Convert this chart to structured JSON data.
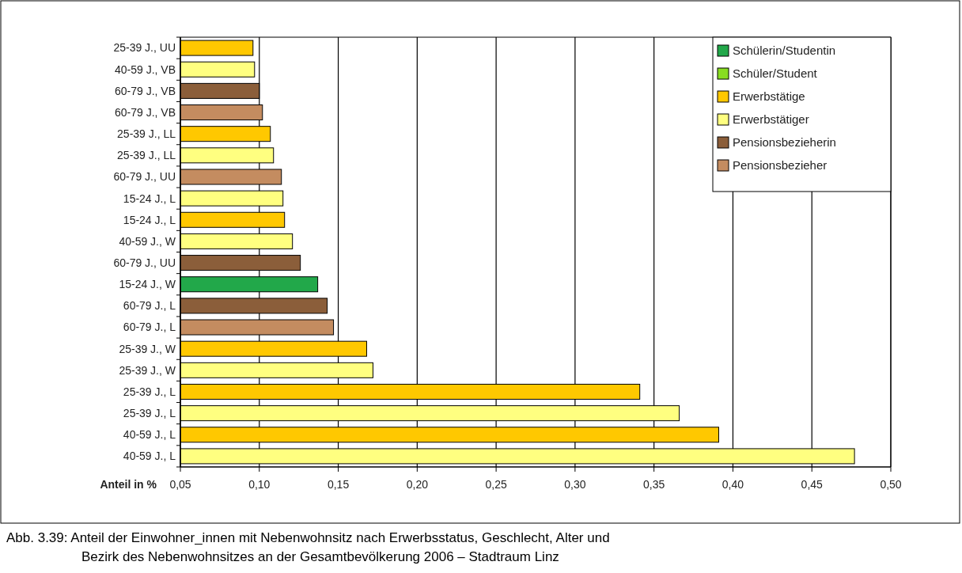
{
  "chart_data": {
    "type": "bar",
    "orientation": "horizontal",
    "categories": [
      "25-39 J., UU",
      "40-59 J., VB",
      "60-79 J., VB",
      "60-79 J., VB",
      "25-39 J., LL",
      "25-39 J., LL",
      "60-79 J., UU",
      "15-24 J., L",
      "15-24 J., L",
      "40-59 J., W",
      "60-79 J., UU",
      "15-24 J., W",
      "60-79 J., L",
      "60-79 J., L",
      "25-39 J., W",
      "25-39 J., W",
      "25-39 J., L",
      "25-39 J., L",
      "40-59 J., L",
      "40-59 J., L"
    ],
    "series": [
      {
        "name": "Schülerin/Studentin",
        "color": "#22a84a",
        "values": [
          null,
          null,
          null,
          null,
          null,
          null,
          null,
          null,
          null,
          null,
          null,
          0.137,
          null,
          null,
          null,
          null,
          null,
          null,
          null,
          null
        ]
      },
      {
        "name": "Schüler/Student",
        "color": "#88dd22",
        "values": [
          null,
          null,
          null,
          null,
          null,
          null,
          null,
          null,
          null,
          null,
          null,
          null,
          null,
          null,
          null,
          null,
          null,
          null,
          null,
          null
        ]
      },
      {
        "name": "Erwerbstätige",
        "color": "#ffc800",
        "values": [
          0.096,
          null,
          null,
          null,
          0.107,
          null,
          null,
          null,
          0.116,
          null,
          null,
          null,
          null,
          null,
          0.168,
          null,
          0.341,
          null,
          0.391,
          null
        ]
      },
      {
        "name": "Erwerbstätiger",
        "color": "#ffff80",
        "values": [
          null,
          0.097,
          null,
          null,
          null,
          0.109,
          null,
          0.115,
          null,
          0.121,
          null,
          null,
          null,
          null,
          null,
          0.172,
          null,
          0.366,
          null,
          0.477
        ]
      },
      {
        "name": "Pensionsbezieherin",
        "color": "#8b5e3a",
        "values": [
          null,
          null,
          0.1,
          null,
          null,
          null,
          null,
          null,
          null,
          null,
          0.126,
          null,
          0.143,
          null,
          null,
          null,
          null,
          null,
          null,
          null
        ]
      },
      {
        "name": "Pensionsbezieher",
        "color": "#c48c60",
        "values": [
          null,
          null,
          null,
          0.102,
          null,
          null,
          0.114,
          null,
          null,
          null,
          null,
          null,
          null,
          0.147,
          null,
          null,
          null,
          null,
          null,
          null
        ]
      }
    ],
    "xlabel": "Anteil in %",
    "xlim": [
      0.05,
      0.5
    ],
    "xticks": [
      {
        "value": 0.05,
        "label": "0,05"
      },
      {
        "value": 0.1,
        "label": "0,10"
      },
      {
        "value": 0.15,
        "label": "0,15"
      },
      {
        "value": 0.2,
        "label": "0,20"
      },
      {
        "value": 0.25,
        "label": "0,25"
      },
      {
        "value": 0.3,
        "label": "0,30"
      },
      {
        "value": 0.35,
        "label": "0,35"
      },
      {
        "value": 0.4,
        "label": "0,40"
      },
      {
        "value": 0.45,
        "label": "0,45"
      },
      {
        "value": 0.5,
        "label": "0,50"
      }
    ],
    "grid": "x",
    "legend": "top right",
    "annotations": [
      "Abb. 3.39: Anteil der Einwohner_innen mit Nebenwohnsitz nach Erwerbsstatus, Geschlecht, Alter und Bezirk des Nebenwohnsitzes an der Gesamtbevölkerung 2006 – Stadtraum Linz"
    ]
  }
}
